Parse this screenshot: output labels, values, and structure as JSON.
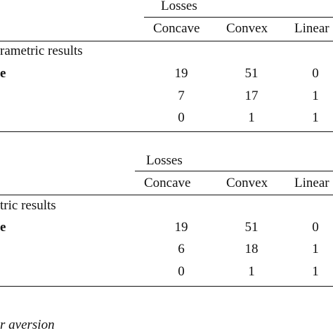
{
  "table": {
    "panel_top": {
      "group_header": "Losses",
      "columns": [
        "Concave",
        "Convex",
        "Linear"
      ],
      "section_label": "rametric results",
      "rows": [
        {
          "label": "e",
          "values": [
            "19",
            "51",
            "0"
          ]
        },
        {
          "label": "",
          "values": [
            "7",
            "17",
            "1"
          ]
        },
        {
          "label": "",
          "values": [
            "0",
            "1",
            "1"
          ]
        }
      ]
    },
    "panel_bottom": {
      "group_header": "Losses",
      "columns": [
        "Concave",
        "Convex",
        "Linear"
      ],
      "section_label": "tric results",
      "rows": [
        {
          "label": "e",
          "values": [
            "19",
            "51",
            "0"
          ]
        },
        {
          "label": "",
          "values": [
            "6",
            "18",
            "1"
          ]
        },
        {
          "label": "",
          "values": [
            "0",
            "1",
            "1"
          ]
        }
      ]
    },
    "footnote": "r aversion"
  }
}
